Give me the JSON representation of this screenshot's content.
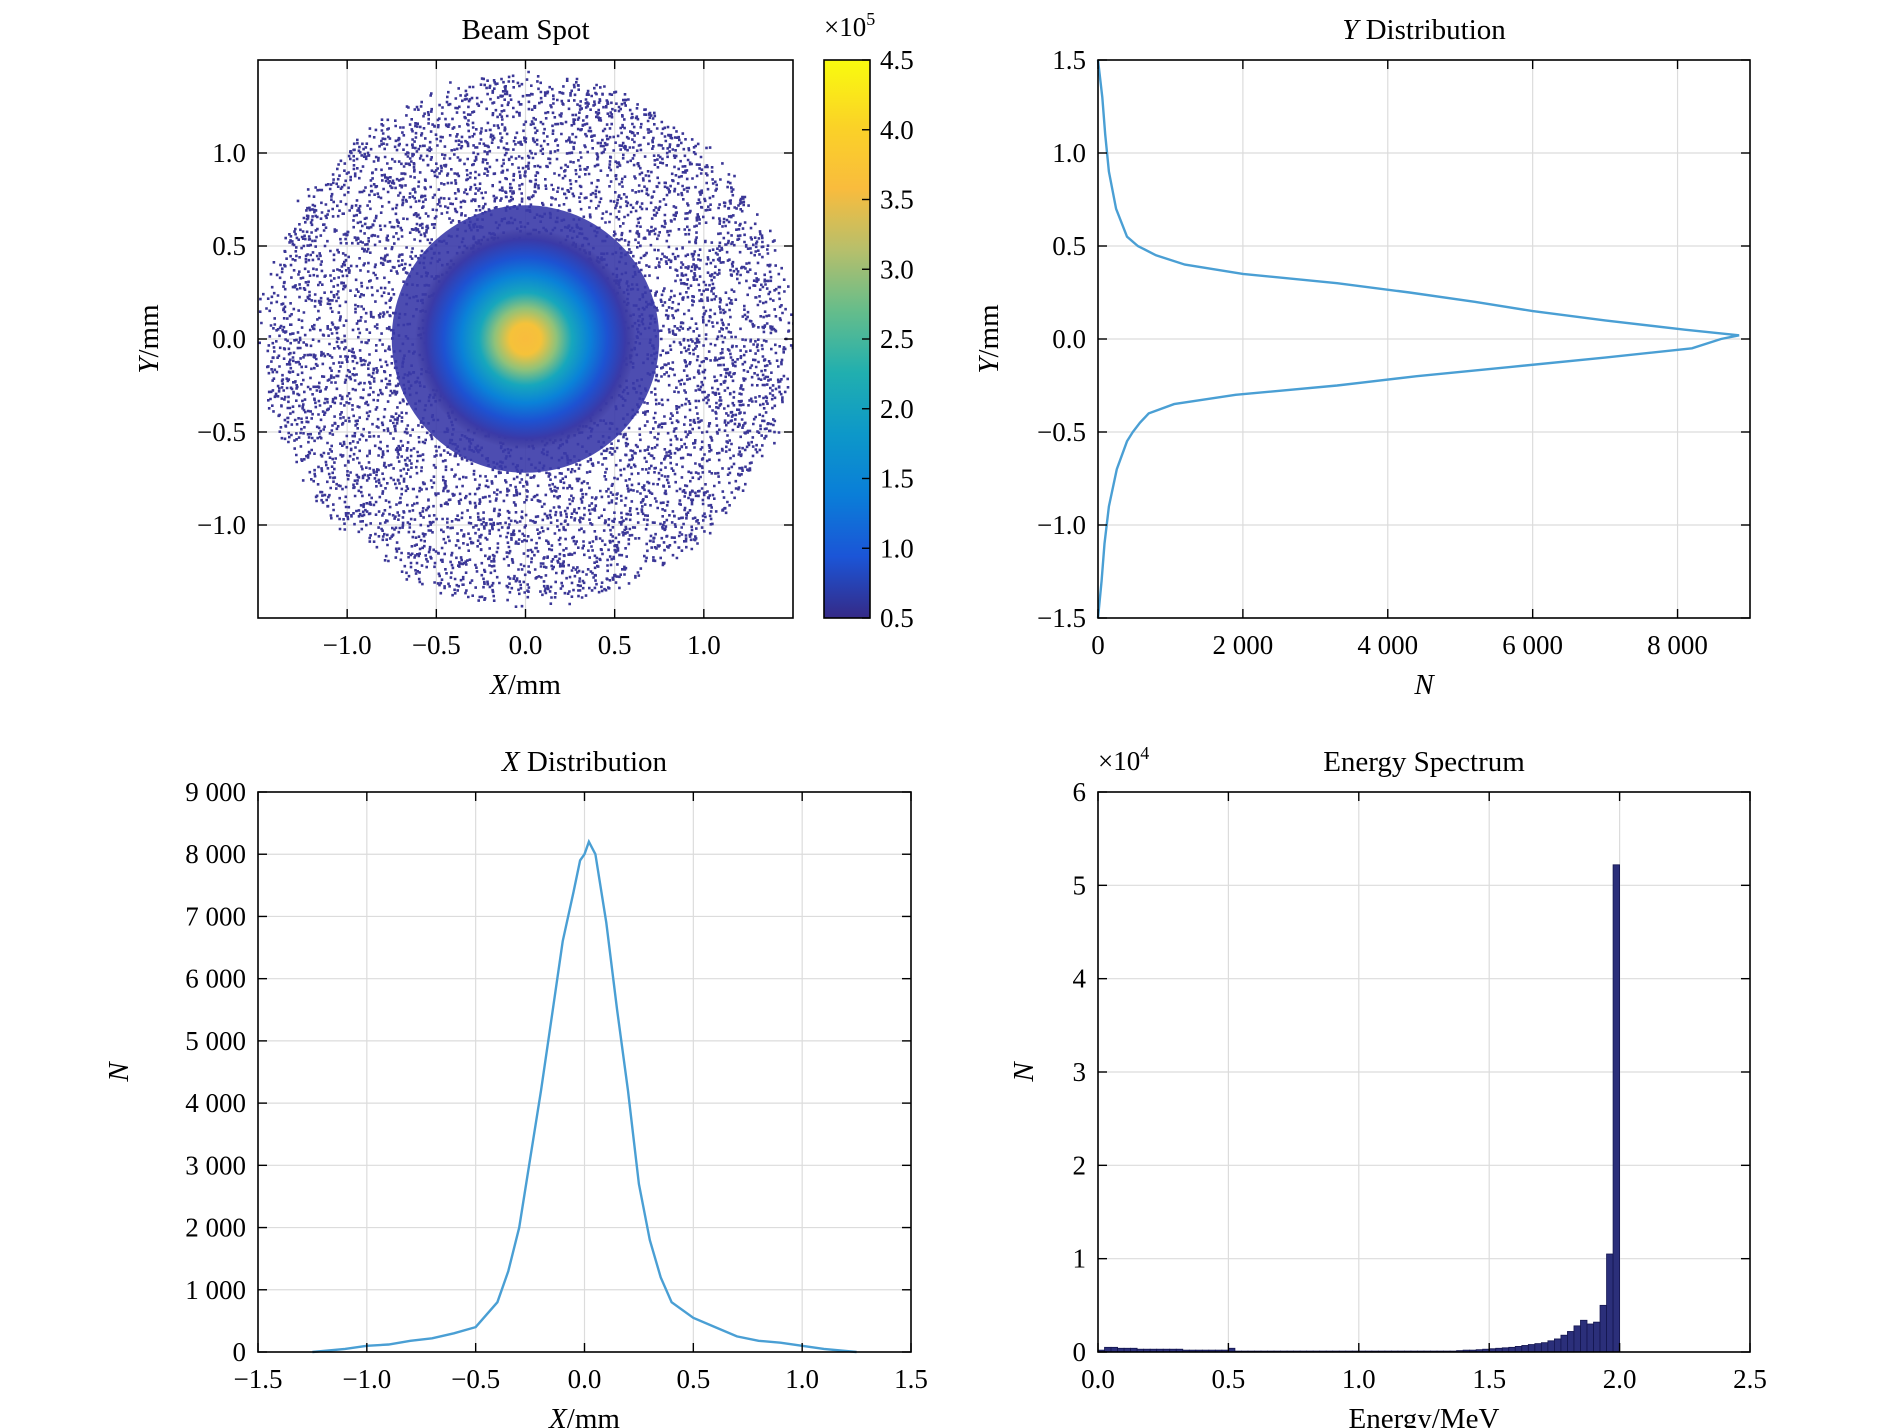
{
  "chart_data": [
    {
      "type": "heatmap",
      "title": "Beam Spot",
      "xlabel": "X/mm",
      "ylabel": "Y/mm",
      "xlim": [
        -1.5,
        1.5
      ],
      "ylim": [
        -1.5,
        1.5
      ],
      "xticks": [
        "−1.0",
        "−0.5",
        "0.0",
        "0.5",
        "1.0"
      ],
      "xtick_values": [
        -1.0,
        -0.5,
        0.0,
        0.5,
        1.0
      ],
      "yticks": [
        "1.0",
        "0.5",
        "0.0",
        "−0.5",
        "−1.0"
      ],
      "ytick_values": [
        1.0,
        0.5,
        0.0,
        -0.5,
        -1.0
      ],
      "spot_center": [
        0.0,
        0.0
      ],
      "spot_extent_radius": 1.5,
      "colorbar": {
        "multiplier": "×10⁵",
        "range": [
          0.5,
          4.5
        ],
        "ticks": [
          "4.5",
          "4.0",
          "3.5",
          "3.0",
          "2.5",
          "2.0",
          "1.5",
          "1.0",
          "0.5"
        ],
        "tick_values": [
          4.5,
          4.0,
          3.5,
          3.0,
          2.5,
          2.0,
          1.5,
          1.0,
          0.5
        ],
        "colormap": "parula",
        "stops": [
          "#352a87",
          "#1b55d7",
          "#0a7ed8",
          "#0d98c9",
          "#21afaf",
          "#65bd8b",
          "#b7bf6b",
          "#f9bc3d",
          "#fad227",
          "#f9fb0e"
        ]
      },
      "grid": true
    },
    {
      "type": "line",
      "title": "Y Distribution",
      "title_italic_prefix": "Y",
      "title_rest": " Distribution",
      "xlabel": "N",
      "ylabel": "Y/mm",
      "xlim": [
        0,
        9000
      ],
      "ylim": [
        -1.5,
        1.5
      ],
      "xticks": [
        "0",
        "2 000",
        "4 000",
        "6 000",
        "8 000"
      ],
      "xtick_values": [
        0,
        2000,
        4000,
        6000,
        8000
      ],
      "yticks": [
        "1.5",
        "1.0",
        "0.5",
        "0.0",
        "−0.5",
        "−1.0",
        "−1.5"
      ],
      "ytick_values": [
        1.5,
        1.0,
        0.5,
        0.0,
        -0.5,
        -1.0,
        -1.5
      ],
      "series": [
        {
          "color": "#4a9fd4",
          "y": [
            1.5,
            1.3,
            1.1,
            0.9,
            0.7,
            0.55,
            0.5,
            0.45,
            0.4,
            0.35,
            0.3,
            0.25,
            0.2,
            0.15,
            0.1,
            0.05,
            0.02,
            0.0,
            -0.05,
            -0.1,
            -0.15,
            -0.2,
            -0.25,
            -0.3,
            -0.35,
            -0.4,
            -0.45,
            -0.5,
            -0.55,
            -0.7,
            -0.9,
            -1.1,
            -1.3,
            -1.5
          ],
          "n": [
            0,
            60,
            100,
            150,
            250,
            400,
            550,
            800,
            1200,
            2000,
            3300,
            4300,
            5200,
            6000,
            7000,
            8100,
            8850,
            8600,
            8200,
            7000,
            5700,
            4400,
            3300,
            1900,
            1050,
            700,
            580,
            480,
            400,
            260,
            150,
            90,
            50,
            0
          ]
        }
      ],
      "grid": true
    },
    {
      "type": "line",
      "title": "X Distribution",
      "title_italic_prefix": "X",
      "title_rest": " Distribution",
      "xlabel": "X/mm",
      "ylabel": "N",
      "xlim": [
        -1.5,
        1.5
      ],
      "ylim": [
        0,
        9000
      ],
      "xticks": [
        "−1.5",
        "−1.0",
        "−0.5",
        "0.0",
        "0.5",
        "1.0",
        "1.5"
      ],
      "xtick_values": [
        -1.5,
        -1.0,
        -0.5,
        0.0,
        0.5,
        1.0,
        1.5
      ],
      "yticks": [
        "9 000",
        "8 000",
        "7 000",
        "6 000",
        "5 000",
        "4 000",
        "3 000",
        "2 000",
        "1 000",
        "0"
      ],
      "ytick_values": [
        9000,
        8000,
        7000,
        6000,
        5000,
        4000,
        3000,
        2000,
        1000,
        0
      ],
      "series": [
        {
          "color": "#4a9fd4",
          "x": [
            -1.25,
            -1.1,
            -1.0,
            -0.9,
            -0.8,
            -0.7,
            -0.6,
            -0.5,
            -0.4,
            -0.35,
            -0.3,
            -0.25,
            -0.2,
            -0.15,
            -0.1,
            -0.05,
            -0.02,
            0.0,
            0.02,
            0.05,
            0.1,
            0.15,
            0.2,
            0.25,
            0.3,
            0.35,
            0.4,
            0.5,
            0.6,
            0.7,
            0.8,
            0.9,
            1.0,
            1.1,
            1.25
          ],
          "y": [
            0,
            50,
            100,
            120,
            180,
            220,
            300,
            400,
            800,
            1300,
            2000,
            3100,
            4200,
            5400,
            6600,
            7400,
            7900,
            8000,
            8200,
            8000,
            6900,
            5500,
            4200,
            2700,
            1800,
            1200,
            800,
            550,
            400,
            250,
            180,
            150,
            100,
            50,
            0
          ]
        }
      ],
      "grid": true
    },
    {
      "type": "bar",
      "title": "Energy Spectrum",
      "xlabel": "Energy/MeV",
      "ylabel": "N",
      "multiplier": "×10⁴",
      "xlim": [
        0.0,
        2.5
      ],
      "ylim": [
        0,
        6
      ],
      "xticks": [
        "0.0",
        "0.5",
        "1.0",
        "1.5",
        "2.0",
        "2.5"
      ],
      "xtick_values": [
        0.0,
        0.5,
        1.0,
        1.5,
        2.0,
        2.5
      ],
      "yticks": [
        "6",
        "5",
        "4",
        "3",
        "2",
        "1",
        "0"
      ],
      "ytick_values": [
        6,
        5,
        4,
        3,
        2,
        1,
        0
      ],
      "bin_start": 0.0,
      "bin_width": 0.025,
      "values": [
        0.02,
        0.05,
        0.05,
        0.04,
        0.04,
        0.04,
        0.03,
        0.03,
        0.03,
        0.03,
        0.03,
        0.03,
        0.03,
        0.02,
        0.02,
        0.02,
        0.02,
        0.02,
        0.02,
        0.02,
        0.04,
        0.01,
        0.01,
        0.01,
        0.01,
        0.01,
        0.01,
        0.01,
        0.01,
        0.01,
        0.01,
        0.01,
        0.01,
        0.01,
        0.01,
        0.01,
        0.01,
        0.01,
        0.01,
        0.01,
        0.01,
        0.01,
        0.01,
        0.01,
        0.01,
        0.01,
        0.01,
        0.01,
        0.01,
        0.01,
        0.01,
        0.01,
        0.01,
        0.01,
        0.01,
        0.015,
        0.02,
        0.02,
        0.025,
        0.03,
        0.035,
        0.04,
        0.045,
        0.05,
        0.06,
        0.07,
        0.08,
        0.09,
        0.1,
        0.12,
        0.14,
        0.18,
        0.22,
        0.28,
        0.34,
        0.3,
        0.32,
        0.5,
        1.05,
        5.22
      ],
      "grid": true
    }
  ]
}
